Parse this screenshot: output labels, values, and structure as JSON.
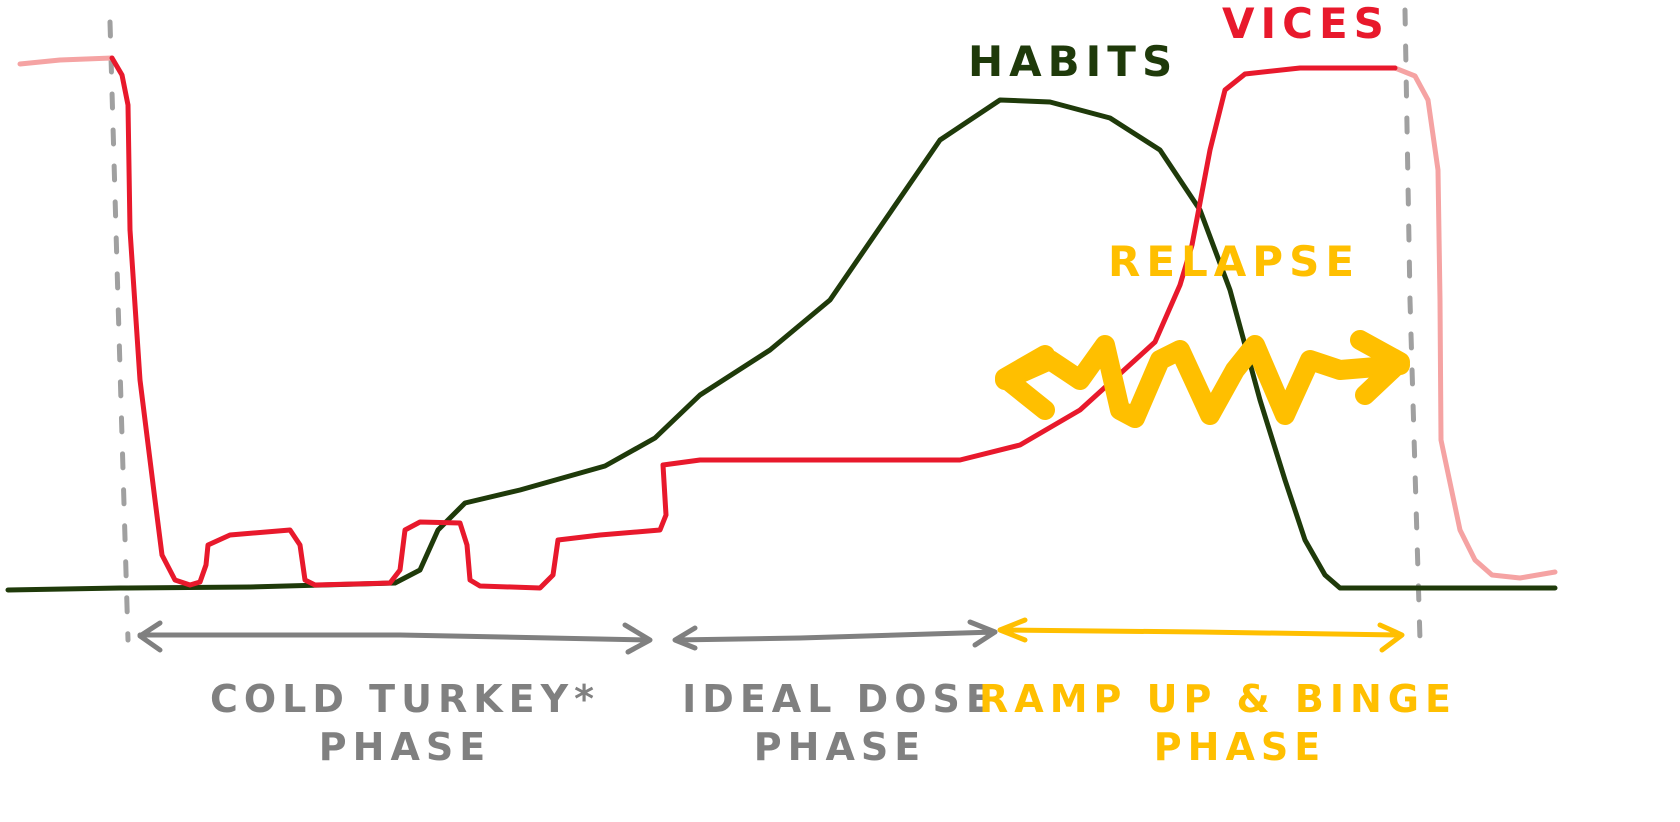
{
  "labels": {
    "habits": "HABITS",
    "vices": "VICES",
    "relapse": "RELAPSE"
  },
  "phases": [
    {
      "line1": "COLD TURKEY*",
      "line2": "PHASE"
    },
    {
      "line1": "IDEAL DOSE",
      "line2": "PHASE"
    },
    {
      "line1": "RAMP UP & BINGE",
      "line2": "PHASE"
    }
  ],
  "colors": {
    "habits": "#1f3a0a",
    "vices": "#e8192c",
    "vices_faded": "#f5a3a3",
    "relapse": "#ffbf00",
    "phase_gray": "#808080",
    "divider": "#a0a0a0"
  }
}
